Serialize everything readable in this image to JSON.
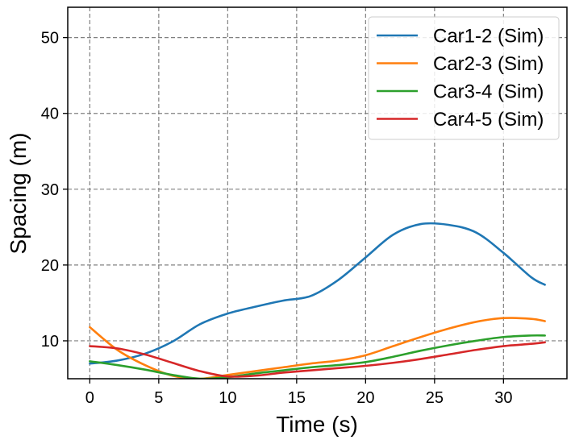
{
  "chart_data": {
    "type": "line",
    "xlabel": "Time (s)",
    "ylabel": "Spacing (m)",
    "xlim": [
      -1.6,
      34.6
    ],
    "ylim": [
      5,
      54
    ],
    "xticks": [
      0,
      5,
      10,
      15,
      20,
      25,
      30
    ],
    "xtick_labels": [
      "0",
      "5",
      "10",
      "15",
      "20",
      "25",
      "30"
    ],
    "yticks": [
      10,
      20,
      30,
      40,
      50
    ],
    "ytick_labels": [
      "10",
      "20",
      "30",
      "40",
      "50"
    ],
    "grid": true,
    "legend_position": "top-right",
    "series": [
      {
        "name": "Car1-2 (Sim)",
        "color": "#1f77b4",
        "x": [
          0,
          2,
          4,
          6,
          8,
          10,
          12,
          14,
          16,
          18,
          20,
          22,
          24,
          26,
          28,
          30,
          32,
          33
        ],
        "y": [
          7.0,
          7.4,
          8.3,
          9.9,
          12.2,
          13.6,
          14.5,
          15.3,
          15.9,
          18.0,
          21.0,
          24.0,
          25.4,
          25.3,
          24.3,
          21.6,
          18.4,
          17.4
        ]
      },
      {
        "name": "Car2-3 (Sim)",
        "color": "#ff7f0e",
        "x": [
          0,
          2,
          4,
          6,
          8,
          10,
          12,
          14,
          16,
          18,
          20,
          22,
          24,
          26,
          28,
          30,
          32,
          33
        ],
        "y": [
          11.8,
          8.8,
          6.8,
          5.4,
          5.0,
          5.5,
          6.0,
          6.5,
          7.0,
          7.4,
          8.1,
          9.3,
          10.5,
          11.6,
          12.5,
          13.0,
          12.9,
          12.6
        ]
      },
      {
        "name": "Car3-4 (Sim)",
        "color": "#2ca02c",
        "x": [
          0,
          2,
          4,
          6,
          8,
          10,
          12,
          14,
          16,
          18,
          20,
          22,
          24,
          26,
          28,
          30,
          32,
          33
        ],
        "y": [
          7.3,
          6.8,
          6.2,
          5.5,
          5.0,
          5.2,
          5.7,
          6.1,
          6.5,
          6.8,
          7.2,
          7.9,
          8.7,
          9.4,
          10.0,
          10.5,
          10.7,
          10.7
        ]
      },
      {
        "name": "Car4-5 (Sim)",
        "color": "#d62728",
        "x": [
          0,
          2,
          4,
          6,
          8,
          10,
          12,
          14,
          16,
          18,
          20,
          22,
          24,
          26,
          28,
          30,
          32,
          33
        ],
        "y": [
          9.3,
          9.0,
          8.2,
          7.1,
          6.0,
          5.3,
          5.4,
          5.8,
          6.1,
          6.4,
          6.7,
          7.1,
          7.6,
          8.2,
          8.8,
          9.3,
          9.6,
          9.8
        ]
      }
    ]
  }
}
